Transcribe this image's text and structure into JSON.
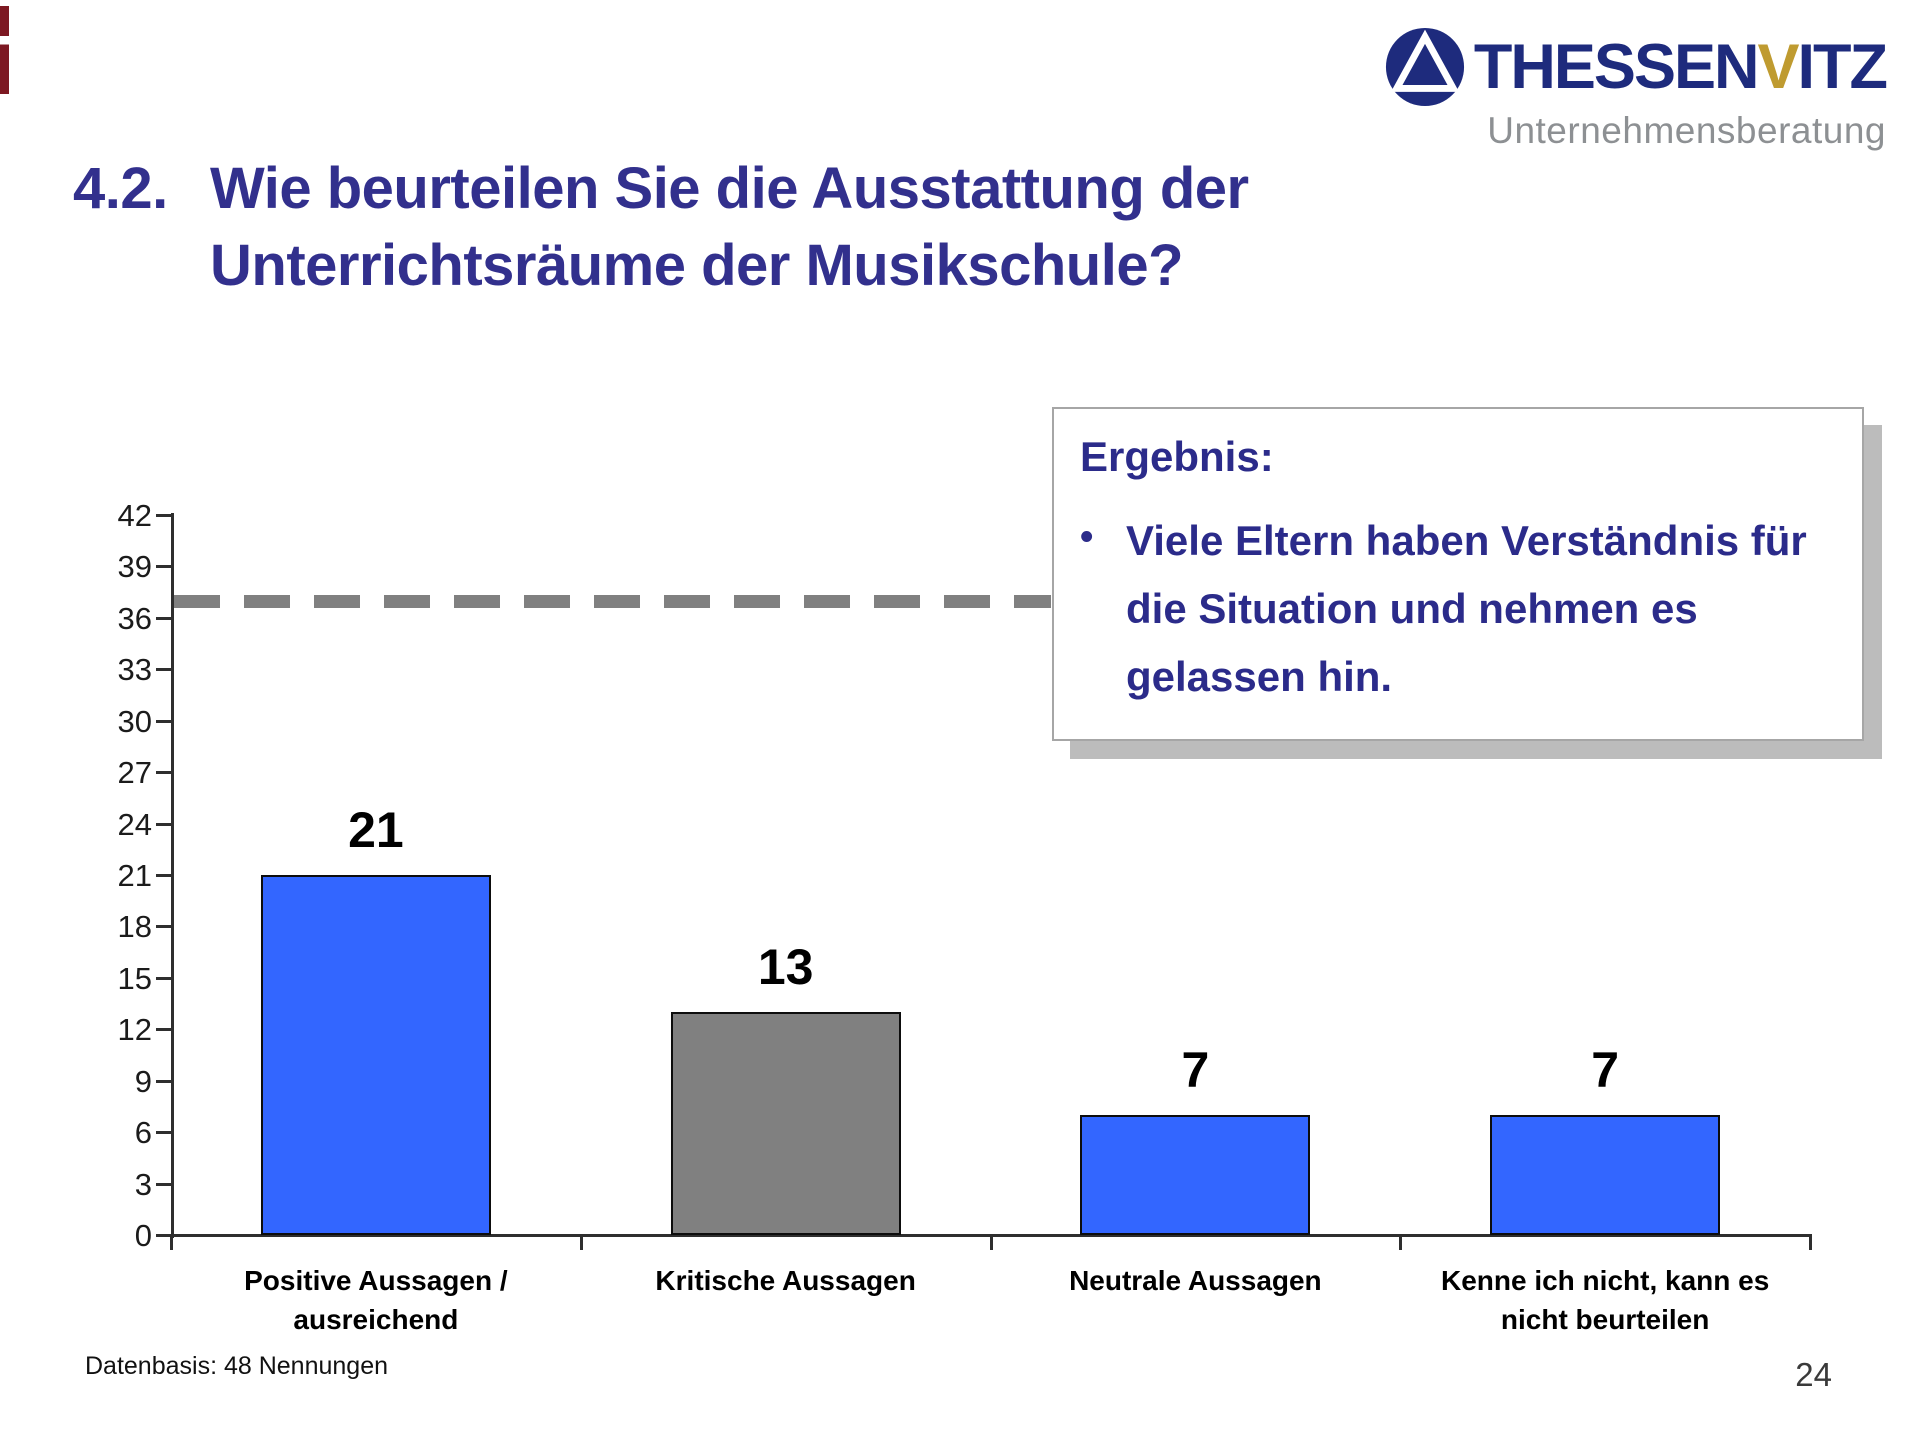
{
  "logo": {
    "name_prefix": "THESSEN",
    "name_accent": "V",
    "name_suffix": "ITZ",
    "subtitle": "Unternehmensberatung",
    "navy": "#1e2b7d",
    "gold": "#bf9b30",
    "subtitle_gray": "#8d9093"
  },
  "title": {
    "number": "4.2.",
    "text": "Wie beurteilen Sie die Ausstattung der Unterrichtsräume der Musikschule?",
    "color": "#32308d"
  },
  "ergebnis": {
    "heading": "Ergebnis:",
    "bullets": [
      "Viele Eltern haben Verständnis für die Situation und nehmen es gelassen hin."
    ]
  },
  "footer": {
    "datenbasis": "Datenbasis: 48 Nennungen",
    "page_number": "24"
  },
  "chart_data": {
    "type": "bar",
    "title": "",
    "xlabel": "",
    "ylabel": "",
    "categories": [
      "Positive Aussagen / ausreichend",
      "Kritische Aussagen",
      "Neutrale Aussagen",
      "Kenne ich nicht, kann es nicht beurteilen"
    ],
    "categories_lines": [
      [
        "Positive Aussagen /",
        "ausreichend"
      ],
      [
        "Kritische Aussagen"
      ],
      [
        "Neutrale Aussagen"
      ],
      [
        "Kenne ich nicht, kann es",
        "nicht beurteilen"
      ]
    ],
    "values": [
      21,
      13,
      7,
      7
    ],
    "bar_colors": [
      "#3366ff",
      "#808080",
      "#3366ff",
      "#3366ff"
    ],
    "value_labels": true,
    "ylim": [
      0,
      42
    ],
    "ytick_step": 3,
    "grid": false,
    "legend": null,
    "reference_line": {
      "value": 37,
      "style": "dashed",
      "color": "#808080"
    }
  }
}
